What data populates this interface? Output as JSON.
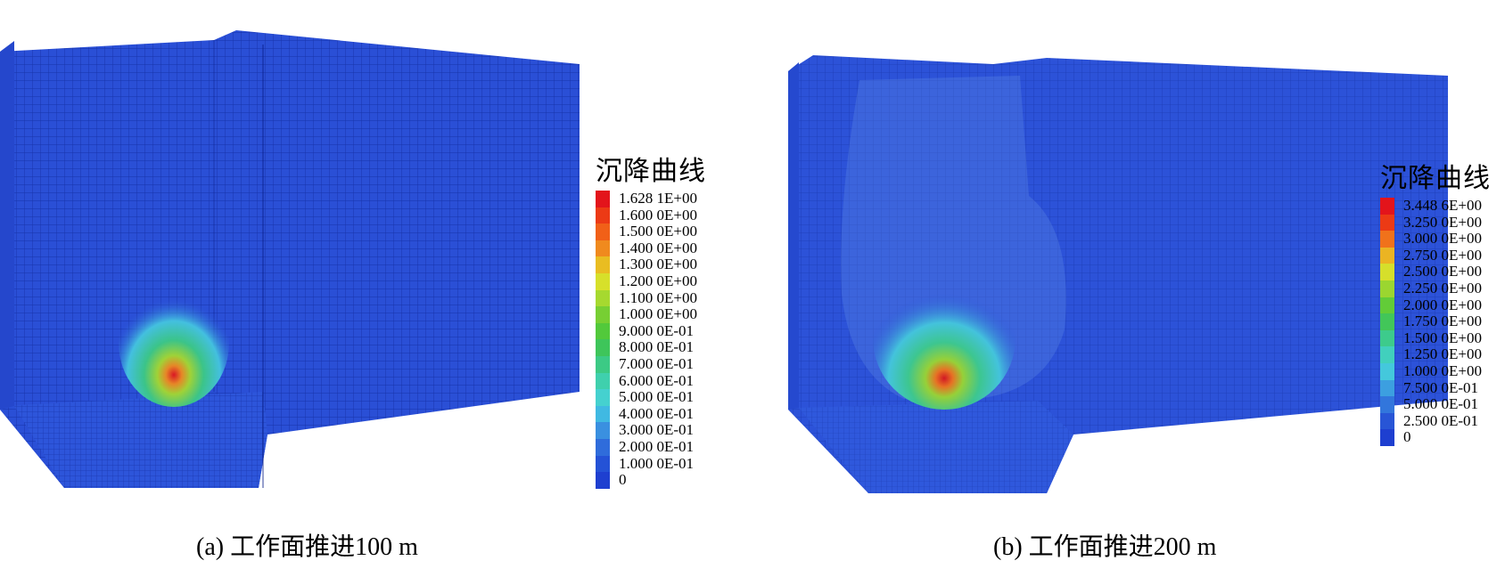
{
  "panels": [
    {
      "caption": "(a) 工作面推进100 m",
      "legend_title": "沉降曲线",
      "legend": [
        {
          "label": "1.628 1E+00",
          "color": "#e3141b"
        },
        {
          "label": "1.600 0E+00",
          "color": "#ec3a15"
        },
        {
          "label": "1.500 0E+00",
          "color": "#f16018"
        },
        {
          "label": "1.400 0E+00",
          "color": "#f08a1e"
        },
        {
          "label": "1.300 0E+00",
          "color": "#e9bd22"
        },
        {
          "label": "1.200 0E+00",
          "color": "#d7e02a"
        },
        {
          "label": "1.100 0E+00",
          "color": "#a6d92f"
        },
        {
          "label": "1.000 0E+00",
          "color": "#77cf33"
        },
        {
          "label": "9.000 0E-01",
          "color": "#52c93b"
        },
        {
          "label": "8.000 0E-01",
          "color": "#3ec55a"
        },
        {
          "label": "7.000 0E-01",
          "color": "#3cca85"
        },
        {
          "label": "6.000 0E-01",
          "color": "#3fd0ad"
        },
        {
          "label": "5.000 0E-01",
          "color": "#45d1cf"
        },
        {
          "label": "4.000 0E-01",
          "color": "#40b9e2"
        },
        {
          "label": "3.000 0E-01",
          "color": "#3a90e0"
        },
        {
          "label": "2.000 0E-01",
          "color": "#2f6cdb"
        },
        {
          "label": "1.000 0E-01",
          "color": "#2452d6"
        },
        {
          "label": "0",
          "color": "#1e3fd0"
        }
      ]
    },
    {
      "caption": "(b) 工作面推进200 m",
      "legend_title": "沉降曲线",
      "legend": [
        {
          "label": "3.448 6E+00",
          "color": "#e3141b"
        },
        {
          "label": "3.250 0E+00",
          "color": "#ec3a15"
        },
        {
          "label": "3.000 0E+00",
          "color": "#f0721b"
        },
        {
          "label": "2.750 0E+00",
          "color": "#ebb423"
        },
        {
          "label": "2.500 0E+00",
          "color": "#d6df2b"
        },
        {
          "label": "2.250 0E+00",
          "color": "#9bd630"
        },
        {
          "label": "2.000 0E+00",
          "color": "#62cc38"
        },
        {
          "label": "1.750 0E+00",
          "color": "#42c659"
        },
        {
          "label": "1.500 0E+00",
          "color": "#3dcb8c"
        },
        {
          "label": "1.250 0E+00",
          "color": "#41d0bd"
        },
        {
          "label": "1.000 0E+00",
          "color": "#44c8dc"
        },
        {
          "label": "7.500 0E-01",
          "color": "#3c9fe0"
        },
        {
          "label": "5.000 0E-01",
          "color": "#3276dc"
        },
        {
          "label": "2.500 0E-01",
          "color": "#2855d6"
        },
        {
          "label": "0",
          "color": "#1e3fd0"
        }
      ]
    }
  ],
  "colors": {
    "mesh_base": "#2a4fd6",
    "mesh_front": "#2d57dc",
    "mesh_top": "#3a63e0",
    "grid_line": "#0a1f8a"
  }
}
